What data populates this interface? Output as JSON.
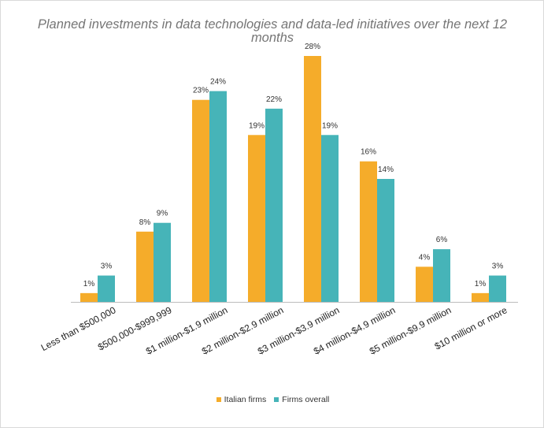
{
  "chart_data": {
    "type": "bar",
    "title": "Planned investments in data technologies and data-led initiatives over the next 12 months",
    "categories": [
      "Less than $500,000",
      "$500,000-$999,999",
      "$1 million-$1.9 million",
      "$2 million-$2.9 million",
      "$3 million-$3.9 million",
      "$4 million-$4.9 million",
      "$5 million-$9.9 million",
      "$10 million or more"
    ],
    "series": [
      {
        "name": "Italian firms",
        "color": "#f5ac2a",
        "values": [
          1,
          8,
          23,
          19,
          28,
          16,
          4,
          1
        ],
        "labels": [
          "1%",
          "8%",
          "23%",
          "19%",
          "28%",
          "16%",
          "4%",
          "1%"
        ]
      },
      {
        "name": "Firms overall",
        "color": "#46b4b8",
        "values": [
          3,
          9,
          24,
          22,
          19,
          14,
          6,
          3
        ],
        "labels": [
          "3%",
          "9%",
          "24%",
          "22%",
          "19%",
          "14%",
          "6%",
          "3%"
        ]
      }
    ],
    "ylim": [
      0,
      28
    ],
    "grid": false,
    "legend_position": "bottom"
  }
}
